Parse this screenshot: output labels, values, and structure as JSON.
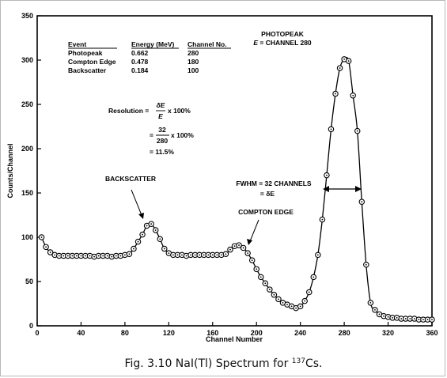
{
  "chart_data": {
    "type": "scatter",
    "xlabel": "Channel Number",
    "ylabel": "Counts/Channel",
    "xlim": [
      0,
      360
    ],
    "ylim": [
      0,
      350
    ],
    "xticks": [
      0,
      40,
      80,
      120,
      160,
      200,
      240,
      280,
      320,
      360
    ],
    "yticks": [
      0,
      50,
      100,
      150,
      200,
      250,
      300,
      350
    ],
    "grid": false,
    "series": [
      {
        "marker": "circle-dot",
        "line": "smooth",
        "x": [
          4,
          8,
          12,
          16,
          20,
          24,
          28,
          32,
          36,
          40,
          44,
          48,
          52,
          56,
          60,
          64,
          68,
          72,
          76,
          80,
          84,
          88,
          92,
          96,
          100,
          104,
          108,
          112,
          116,
          120,
          124,
          128,
          132,
          136,
          140,
          144,
          148,
          152,
          156,
          160,
          164,
          168,
          172,
          176,
          180,
          184,
          188,
          192,
          196,
          200,
          204,
          208,
          212,
          216,
          220,
          224,
          228,
          232,
          236,
          240,
          244,
          248,
          252,
          256,
          260,
          264,
          268,
          272,
          276,
          280,
          284,
          288,
          292,
          296,
          300,
          304,
          308,
          312,
          316,
          320,
          324,
          328,
          332,
          336,
          340,
          344,
          348,
          352,
          356,
          360
        ],
        "y": [
          100,
          89,
          83,
          80,
          79,
          79,
          79,
          79,
          79,
          79,
          79,
          79,
          78,
          79,
          79,
          79,
          78,
          79,
          79,
          80,
          81,
          87,
          95,
          103,
          113,
          115,
          108,
          98,
          87,
          82,
          80,
          80,
          80,
          79,
          80,
          80,
          80,
          80,
          80,
          80,
          80,
          80,
          81,
          86,
          90,
          91,
          88,
          82,
          74,
          64,
          55,
          48,
          41,
          35,
          30,
          26,
          24,
          22,
          20,
          22,
          28,
          38,
          55,
          80,
          120,
          170,
          222,
          262,
          291,
          301,
          299,
          260,
          220,
          140,
          69,
          26,
          18,
          13,
          11,
          10,
          9,
          9,
          8,
          8,
          8,
          8,
          7,
          7,
          7,
          7
        ]
      }
    ],
    "table": {
      "headers": [
        "Event",
        "Energy (MeV)",
        "Channel No."
      ],
      "rows": [
        [
          "Photopeak",
          "0.662",
          "280"
        ],
        [
          "Compton Edge",
          "0.478",
          "180"
        ],
        [
          "Backscatter",
          "0.184",
          "100"
        ]
      ]
    },
    "annotations": {
      "photopeak_1": "PHOTOPEAK",
      "photopeak_2_var": "E",
      "photopeak_2_rest": " = CHANNEL 280",
      "backscatter": "BACKSCATTER",
      "compton": "COMPTON EDGE",
      "fwhm_1": "FWHM = 32 CHANNELS",
      "fwhm_2": "= δE",
      "res_label": "Resolution =",
      "res_num": "δE",
      "res_den": "E",
      "res_mult": "x 100%",
      "res2_eq": "=",
      "res2_num": "32",
      "res2_den": "280",
      "res2_mult": "x 100%",
      "res3": "= 11.5%"
    },
    "caption": "Fig. 3.10 NaI(Tl) Spectrum for ",
    "caption_sup": "137",
    "caption_tail": "Cs."
  }
}
